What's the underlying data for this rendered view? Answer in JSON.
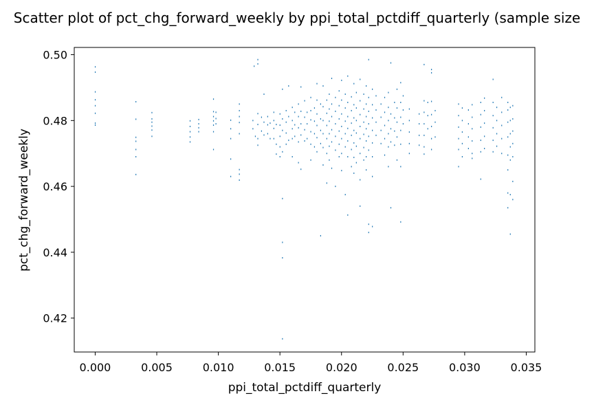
{
  "chart_data": {
    "type": "scatter",
    "title": "Scatter plot of pct_chg_forward_weekly by ppi_total_pctdiff_quarterly (sample size",
    "xlabel": "ppi_total_pctdiff_quarterly",
    "ylabel": "pct_chg_forward_weekly",
    "xlim": [
      -0.0017,
      0.0357
    ],
    "ylim": [
      0.4097,
      0.5022
    ],
    "xticks": [
      "0.000",
      "0.005",
      "0.010",
      "0.015",
      "0.020",
      "0.025",
      "0.030",
      "0.035"
    ],
    "yticks": [
      "0.42",
      "0.44",
      "0.46",
      "0.48",
      "0.50"
    ],
    "grid": false,
    "color": "#1f77b4",
    "marker": "pixel",
    "points": [
      [
        0.0,
        0.4963
      ],
      [
        0.0,
        0.4947
      ],
      [
        0.0,
        0.4887
      ],
      [
        0.0,
        0.4863
      ],
      [
        0.0,
        0.4845
      ],
      [
        0.0,
        0.4822
      ],
      [
        0.0,
        0.4792
      ],
      [
        0.0,
        0.4786
      ],
      [
        0.0033,
        0.4857
      ],
      [
        0.0033,
        0.4804
      ],
      [
        0.0033,
        0.4749
      ],
      [
        0.0033,
        0.4737
      ],
      [
        0.0033,
        0.4712
      ],
      [
        0.0033,
        0.469
      ],
      [
        0.0033,
        0.4636
      ],
      [
        0.0046,
        0.4824
      ],
      [
        0.0046,
        0.4805
      ],
      [
        0.0046,
        0.4795
      ],
      [
        0.0046,
        0.4783
      ],
      [
        0.0046,
        0.4771
      ],
      [
        0.0046,
        0.4752
      ],
      [
        0.0077,
        0.4799
      ],
      [
        0.0077,
        0.4782
      ],
      [
        0.0077,
        0.4766
      ],
      [
        0.0077,
        0.475
      ],
      [
        0.0077,
        0.4735
      ],
      [
        0.0084,
        0.4803
      ],
      [
        0.0084,
        0.479
      ],
      [
        0.0084,
        0.4778
      ],
      [
        0.0084,
        0.4766
      ],
      [
        0.0096,
        0.4865
      ],
      [
        0.0096,
        0.4827
      ],
      [
        0.0096,
        0.4812
      ],
      [
        0.0096,
        0.4799
      ],
      [
        0.0096,
        0.4786
      ],
      [
        0.0096,
        0.4766
      ],
      [
        0.0096,
        0.4712
      ],
      [
        0.0098,
        0.4825
      ],
      [
        0.0098,
        0.4806
      ],
      [
        0.0098,
        0.479
      ],
      [
        0.011,
        0.4801
      ],
      [
        0.011,
        0.4775
      ],
      [
        0.011,
        0.4745
      ],
      [
        0.011,
        0.4683
      ],
      [
        0.011,
        0.463
      ],
      [
        0.0117,
        0.485
      ],
      [
        0.0117,
        0.483
      ],
      [
        0.0117,
        0.4812
      ],
      [
        0.0117,
        0.4794
      ],
      [
        0.0117,
        0.476
      ],
      [
        0.0117,
        0.4651
      ],
      [
        0.0117,
        0.4637
      ],
      [
        0.0117,
        0.4619
      ],
      [
        0.0128,
        0.48
      ],
      [
        0.0128,
        0.4775
      ],
      [
        0.0129,
        0.4965
      ],
      [
        0.013,
        0.4752
      ],
      [
        0.0132,
        0.4985
      ],
      [
        0.0132,
        0.4972
      ],
      [
        0.0132,
        0.4821
      ],
      [
        0.0132,
        0.4788
      ],
      [
        0.0132,
        0.4745
      ],
      [
        0.0132,
        0.4725
      ],
      [
        0.0135,
        0.481
      ],
      [
        0.0135,
        0.4768
      ],
      [
        0.0137,
        0.488
      ],
      [
        0.0137,
        0.4795
      ],
      [
        0.0137,
        0.4756
      ],
      [
        0.014,
        0.4812
      ],
      [
        0.014,
        0.4787
      ],
      [
        0.014,
        0.476
      ],
      [
        0.0142,
        0.4792
      ],
      [
        0.0142,
        0.4745
      ],
      [
        0.0145,
        0.4825
      ],
      [
        0.0145,
        0.48
      ],
      [
        0.0145,
        0.4776
      ],
      [
        0.0145,
        0.4745
      ],
      [
        0.0147,
        0.4788
      ],
      [
        0.0147,
        0.4728
      ],
      [
        0.0147,
        0.4698
      ],
      [
        0.015,
        0.482
      ],
      [
        0.015,
        0.4786
      ],
      [
        0.015,
        0.4752
      ],
      [
        0.015,
        0.472
      ],
      [
        0.015,
        0.469
      ],
      [
        0.0152,
        0.4895
      ],
      [
        0.0152,
        0.4805
      ],
      [
        0.0152,
        0.477
      ],
      [
        0.0152,
        0.4705
      ],
      [
        0.0152,
        0.4563
      ],
      [
        0.0152,
        0.443
      ],
      [
        0.0152,
        0.4383
      ],
      [
        0.0152,
        0.4137
      ],
      [
        0.0155,
        0.483
      ],
      [
        0.0155,
        0.4795
      ],
      [
        0.0155,
        0.4762
      ],
      [
        0.0155,
        0.4728
      ],
      [
        0.0157,
        0.4905
      ],
      [
        0.0157,
        0.4812
      ],
      [
        0.0157,
        0.474
      ],
      [
        0.016,
        0.484
      ],
      [
        0.016,
        0.48
      ],
      [
        0.016,
        0.4775
      ],
      [
        0.016,
        0.4745
      ],
      [
        0.016,
        0.469
      ],
      [
        0.0162,
        0.4825
      ],
      [
        0.0162,
        0.4787
      ],
      [
        0.0162,
        0.4752
      ],
      [
        0.0165,
        0.485
      ],
      [
        0.0165,
        0.4812
      ],
      [
        0.0165,
        0.4778
      ],
      [
        0.0165,
        0.4735
      ],
      [
        0.0165,
        0.4672
      ],
      [
        0.0167,
        0.4902
      ],
      [
        0.0167,
        0.4828
      ],
      [
        0.0167,
        0.479
      ],
      [
        0.0167,
        0.4756
      ],
      [
        0.0167,
        0.4652
      ],
      [
        0.017,
        0.486
      ],
      [
        0.017,
        0.481
      ],
      [
        0.017,
        0.4772
      ],
      [
        0.017,
        0.4738
      ],
      [
        0.0172,
        0.4825
      ],
      [
        0.0172,
        0.479
      ],
      [
        0.0172,
        0.4745
      ],
      [
        0.0175,
        0.487
      ],
      [
        0.0175,
        0.483
      ],
      [
        0.0175,
        0.4802
      ],
      [
        0.0175,
        0.4766
      ],
      [
        0.0175,
        0.4728
      ],
      [
        0.0175,
        0.468
      ],
      [
        0.0178,
        0.4838
      ],
      [
        0.0178,
        0.4798
      ],
      [
        0.0178,
        0.476
      ],
      [
        0.0178,
        0.472
      ],
      [
        0.018,
        0.4912
      ],
      [
        0.018,
        0.4862
      ],
      [
        0.018,
        0.482
      ],
      [
        0.018,
        0.4785
      ],
      [
        0.018,
        0.4748
      ],
      [
        0.018,
        0.4705
      ],
      [
        0.0183,
        0.485
      ],
      [
        0.0183,
        0.4805
      ],
      [
        0.0183,
        0.477
      ],
      [
        0.0183,
        0.473
      ],
      [
        0.0183,
        0.445
      ],
      [
        0.0185,
        0.4905
      ],
      [
        0.0185,
        0.4842
      ],
      [
        0.0185,
        0.48
      ],
      [
        0.0185,
        0.476
      ],
      [
        0.0185,
        0.4718
      ],
      [
        0.0185,
        0.4665
      ],
      [
        0.0188,
        0.4862
      ],
      [
        0.0188,
        0.4822
      ],
      [
        0.0188,
        0.4785
      ],
      [
        0.0188,
        0.4745
      ],
      [
        0.0188,
        0.47
      ],
      [
        0.0188,
        0.461
      ],
      [
        0.019,
        0.488
      ],
      [
        0.019,
        0.4835
      ],
      [
        0.019,
        0.4798
      ],
      [
        0.019,
        0.476
      ],
      [
        0.019,
        0.4722
      ],
      [
        0.019,
        0.468
      ],
      [
        0.0192,
        0.4928
      ],
      [
        0.0192,
        0.485
      ],
      [
        0.0192,
        0.4812
      ],
      [
        0.0192,
        0.4772
      ],
      [
        0.0192,
        0.4735
      ],
      [
        0.0192,
        0.4655
      ],
      [
        0.0195,
        0.487
      ],
      [
        0.0195,
        0.4828
      ],
      [
        0.0195,
        0.479
      ],
      [
        0.0195,
        0.4752
      ],
      [
        0.0195,
        0.471
      ],
      [
        0.0195,
        0.46
      ],
      [
        0.0198,
        0.489
      ],
      [
        0.0198,
        0.4845
      ],
      [
        0.0198,
        0.4805
      ],
      [
        0.0198,
        0.4768
      ],
      [
        0.0198,
        0.4728
      ],
      [
        0.0198,
        0.469
      ],
      [
        0.02,
        0.4922
      ],
      [
        0.02,
        0.4862
      ],
      [
        0.02,
        0.482
      ],
      [
        0.02,
        0.4782
      ],
      [
        0.02,
        0.4745
      ],
      [
        0.02,
        0.47
      ],
      [
        0.02,
        0.4648
      ],
      [
        0.0203,
        0.488
      ],
      [
        0.0203,
        0.4838
      ],
      [
        0.0203,
        0.4798
      ],
      [
        0.0203,
        0.476
      ],
      [
        0.0203,
        0.472
      ],
      [
        0.0203,
        0.4575
      ],
      [
        0.0205,
        0.4935
      ],
      [
        0.0205,
        0.4855
      ],
      [
        0.0205,
        0.4812
      ],
      [
        0.0205,
        0.4776
      ],
      [
        0.0205,
        0.4738
      ],
      [
        0.0205,
        0.469
      ],
      [
        0.0205,
        0.4513
      ],
      [
        0.0208,
        0.4872
      ],
      [
        0.0208,
        0.483
      ],
      [
        0.0208,
        0.4792
      ],
      [
        0.0208,
        0.4755
      ],
      [
        0.0208,
        0.4712
      ],
      [
        0.0208,
        0.466
      ],
      [
        0.021,
        0.4912
      ],
      [
        0.021,
        0.4848
      ],
      [
        0.021,
        0.4808
      ],
      [
        0.021,
        0.477
      ],
      [
        0.021,
        0.4732
      ],
      [
        0.021,
        0.4688
      ],
      [
        0.021,
        0.464
      ],
      [
        0.0212,
        0.4885
      ],
      [
        0.0212,
        0.4838
      ],
      [
        0.0212,
        0.48
      ],
      [
        0.0212,
        0.4762
      ],
      [
        0.0212,
        0.4722
      ],
      [
        0.0212,
        0.4672
      ],
      [
        0.0215,
        0.4925
      ],
      [
        0.0215,
        0.486
      ],
      [
        0.0215,
        0.4818
      ],
      [
        0.0215,
        0.4782
      ],
      [
        0.0215,
        0.4745
      ],
      [
        0.0215,
        0.47
      ],
      [
        0.0215,
        0.462
      ],
      [
        0.0215,
        0.454
      ],
      [
        0.0218,
        0.488
      ],
      [
        0.0218,
        0.4835
      ],
      [
        0.0218,
        0.4795
      ],
      [
        0.0218,
        0.4758
      ],
      [
        0.0218,
        0.4718
      ],
      [
        0.0218,
        0.468
      ],
      [
        0.022,
        0.4905
      ],
      [
        0.022,
        0.485
      ],
      [
        0.022,
        0.4812
      ],
      [
        0.022,
        0.4775
      ],
      [
        0.022,
        0.4738
      ],
      [
        0.022,
        0.469
      ],
      [
        0.022,
        0.465
      ],
      [
        0.0222,
        0.4985
      ],
      [
        0.0222,
        0.487
      ],
      [
        0.0222,
        0.4828
      ],
      [
        0.0222,
        0.479
      ],
      [
        0.0222,
        0.4752
      ],
      [
        0.0222,
        0.471
      ],
      [
        0.0222,
        0.4485
      ],
      [
        0.0222,
        0.446
      ],
      [
        0.0225,
        0.4895
      ],
      [
        0.0225,
        0.4848
      ],
      [
        0.0225,
        0.4808
      ],
      [
        0.0225,
        0.477
      ],
      [
        0.0225,
        0.4732
      ],
      [
        0.0225,
        0.469
      ],
      [
        0.0225,
        0.463
      ],
      [
        0.0225,
        0.4478
      ],
      [
        0.0228,
        0.4875
      ],
      [
        0.0228,
        0.4832
      ],
      [
        0.0228,
        0.4795
      ],
      [
        0.0228,
        0.4755
      ],
      [
        0.0232,
        0.485
      ],
      [
        0.0232,
        0.481
      ],
      [
        0.0232,
        0.477
      ],
      [
        0.0232,
        0.473
      ],
      [
        0.0235,
        0.487
      ],
      [
        0.0235,
        0.4825
      ],
      [
        0.0235,
        0.4785
      ],
      [
        0.0235,
        0.4745
      ],
      [
        0.0235,
        0.4695
      ],
      [
        0.0238,
        0.4885
      ],
      [
        0.0238,
        0.484
      ],
      [
        0.0238,
        0.48
      ],
      [
        0.0238,
        0.476
      ],
      [
        0.0238,
        0.472
      ],
      [
        0.0238,
        0.466
      ],
      [
        0.024,
        0.4975
      ],
      [
        0.024,
        0.482
      ],
      [
        0.024,
        0.4775
      ],
      [
        0.024,
        0.4735
      ],
      [
        0.024,
        0.4535
      ],
      [
        0.0243,
        0.4855
      ],
      [
        0.0243,
        0.4808
      ],
      [
        0.0243,
        0.4768
      ],
      [
        0.0243,
        0.4725
      ],
      [
        0.0245,
        0.4895
      ],
      [
        0.0245,
        0.4838
      ],
      [
        0.0245,
        0.4795
      ],
      [
        0.0245,
        0.475
      ],
      [
        0.0245,
        0.468
      ],
      [
        0.0248,
        0.4915
      ],
      [
        0.0248,
        0.4855
      ],
      [
        0.0248,
        0.481
      ],
      [
        0.0248,
        0.477
      ],
      [
        0.0248,
        0.4728
      ],
      [
        0.0248,
        0.466
      ],
      [
        0.0248,
        0.4492
      ],
      [
        0.025,
        0.4875
      ],
      [
        0.025,
        0.4832
      ],
      [
        0.025,
        0.479
      ],
      [
        0.0255,
        0.4835
      ],
      [
        0.0255,
        0.48
      ],
      [
        0.0255,
        0.4765
      ],
      [
        0.0255,
        0.473
      ],
      [
        0.0255,
        0.47
      ],
      [
        0.0263,
        0.482
      ],
      [
        0.0263,
        0.479
      ],
      [
        0.0263,
        0.4755
      ],
      [
        0.0263,
        0.4725
      ],
      [
        0.0267,
        0.497
      ],
      [
        0.0267,
        0.486
      ],
      [
        0.0267,
        0.4825
      ],
      [
        0.0267,
        0.479
      ],
      [
        0.0267,
        0.4755
      ],
      [
        0.0267,
        0.472
      ],
      [
        0.0267,
        0.4698
      ],
      [
        0.027,
        0.4855
      ],
      [
        0.027,
        0.4815
      ],
      [
        0.027,
        0.4775
      ],
      [
        0.0273,
        0.4955
      ],
      [
        0.0273,
        0.4945
      ],
      [
        0.0273,
        0.4858
      ],
      [
        0.0273,
        0.4818
      ],
      [
        0.0273,
        0.4782
      ],
      [
        0.0273,
        0.4745
      ],
      [
        0.0273,
        0.4712
      ],
      [
        0.0276,
        0.483
      ],
      [
        0.0276,
        0.4795
      ],
      [
        0.0276,
        0.475
      ],
      [
        0.0295,
        0.485
      ],
      [
        0.0295,
        0.4815
      ],
      [
        0.0295,
        0.478
      ],
      [
        0.0295,
        0.4745
      ],
      [
        0.0295,
        0.4712
      ],
      [
        0.0295,
        0.466
      ],
      [
        0.0298,
        0.4838
      ],
      [
        0.0298,
        0.48
      ],
      [
        0.0298,
        0.4765
      ],
      [
        0.0298,
        0.473
      ],
      [
        0.0298,
        0.469
      ],
      [
        0.0303,
        0.4832
      ],
      [
        0.0303,
        0.479
      ],
      [
        0.0303,
        0.475
      ],
      [
        0.0303,
        0.4715
      ],
      [
        0.0306,
        0.4848
      ],
      [
        0.0306,
        0.481
      ],
      [
        0.0306,
        0.4775
      ],
      [
        0.0306,
        0.4738
      ],
      [
        0.0306,
        0.47
      ],
      [
        0.0306,
        0.4685
      ],
      [
        0.0313,
        0.4855
      ],
      [
        0.0313,
        0.4818
      ],
      [
        0.0313,
        0.478
      ],
      [
        0.0313,
        0.474
      ],
      [
        0.0313,
        0.4705
      ],
      [
        0.0313,
        0.4622
      ],
      [
        0.0316,
        0.4868
      ],
      [
        0.0316,
        0.483
      ],
      [
        0.0316,
        0.4792
      ],
      [
        0.0316,
        0.4752
      ],
      [
        0.0316,
        0.4715
      ],
      [
        0.0323,
        0.4925
      ],
      [
        0.0323,
        0.4855
      ],
      [
        0.0323,
        0.4815
      ],
      [
        0.0323,
        0.4778
      ],
      [
        0.0323,
        0.474
      ],
      [
        0.0323,
        0.4705
      ],
      [
        0.0326,
        0.484
      ],
      [
        0.0326,
        0.48
      ],
      [
        0.0326,
        0.476
      ],
      [
        0.0326,
        0.4722
      ],
      [
        0.033,
        0.487
      ],
      [
        0.033,
        0.4825
      ],
      [
        0.033,
        0.4785
      ],
      [
        0.033,
        0.4745
      ],
      [
        0.033,
        0.47
      ],
      [
        0.0335,
        0.4855
      ],
      [
        0.0335,
        0.4832
      ],
      [
        0.0335,
        0.4795
      ],
      [
        0.0335,
        0.475
      ],
      [
        0.0335,
        0.4695
      ],
      [
        0.0335,
        0.465
      ],
      [
        0.0335,
        0.458
      ],
      [
        0.0335,
        0.4535
      ],
      [
        0.0337,
        0.484
      ],
      [
        0.0337,
        0.48
      ],
      [
        0.0337,
        0.476
      ],
      [
        0.0337,
        0.472
      ],
      [
        0.0337,
        0.468
      ],
      [
        0.0337,
        0.4575
      ],
      [
        0.0337,
        0.4455
      ],
      [
        0.0339,
        0.4845
      ],
      [
        0.0339,
        0.4805
      ],
      [
        0.0339,
        0.4768
      ],
      [
        0.0339,
        0.473
      ],
      [
        0.0339,
        0.469
      ],
      [
        0.0339,
        0.4615
      ],
      [
        0.0339,
        0.456
      ]
    ]
  }
}
